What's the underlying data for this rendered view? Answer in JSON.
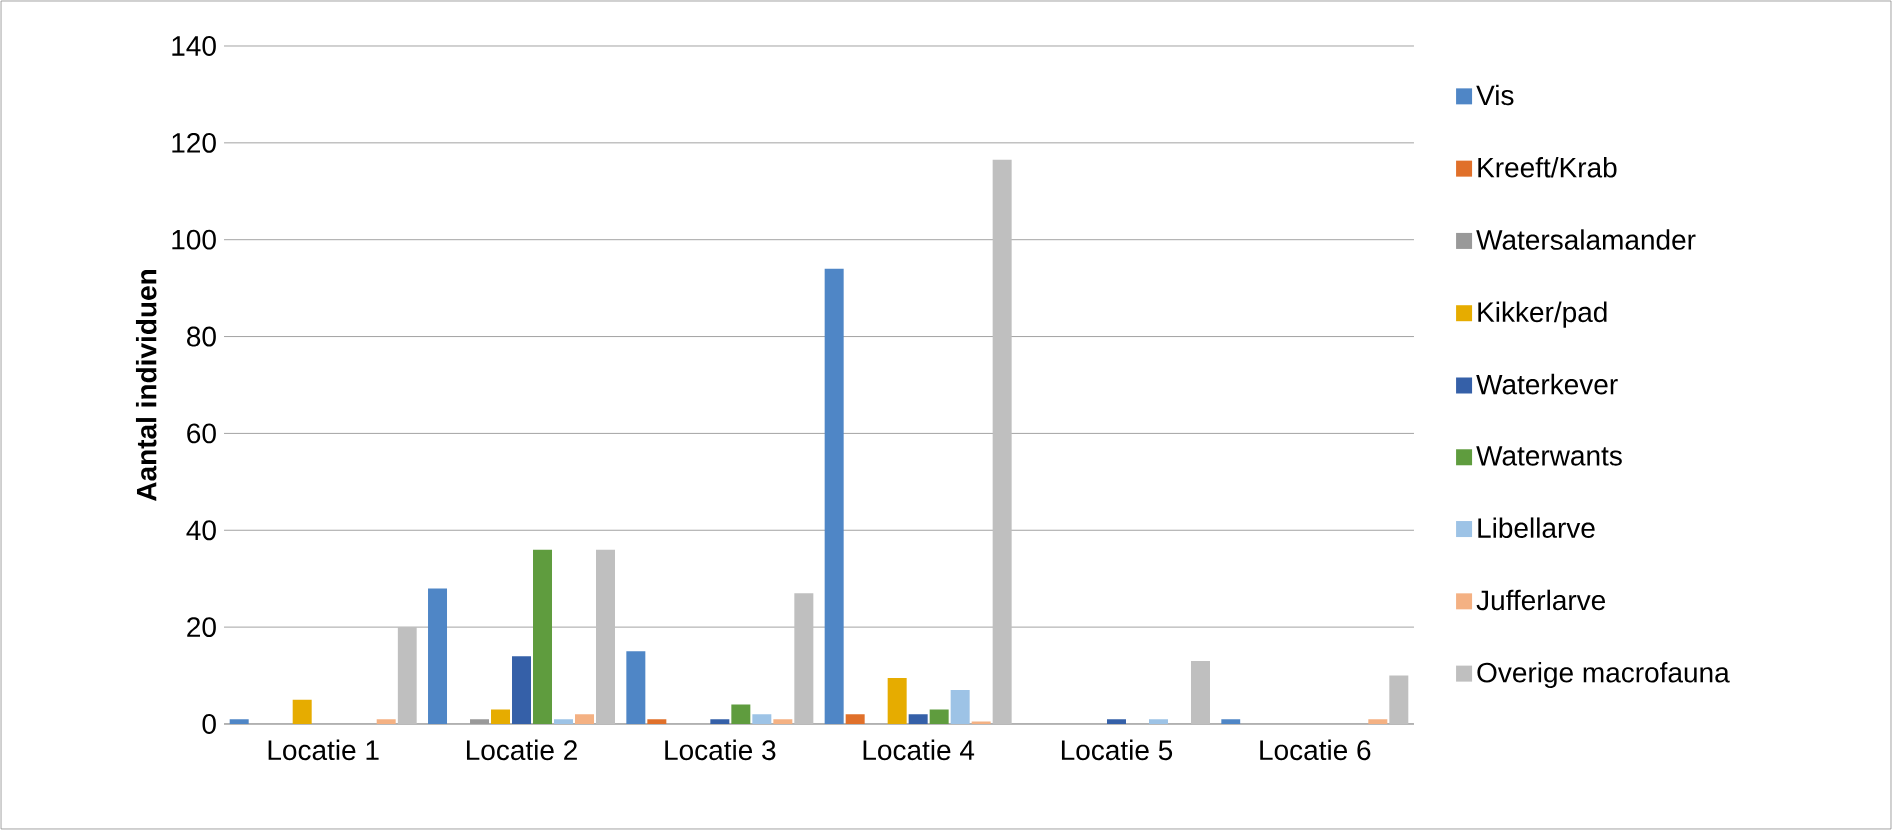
{
  "chart_data": {
    "type": "bar",
    "ylabel": "Aantal individuen",
    "categories": [
      "Locatie 1",
      "Locatie 2",
      "Locatie 3",
      "Locatie 4",
      "Locatie 5",
      "Locatie 6"
    ],
    "series": [
      {
        "name": "Vis",
        "color": "#4f86c6",
        "values": [
          1,
          28,
          15,
          94,
          0,
          1
        ]
      },
      {
        "name": "Kreeft/Krab",
        "color": "#e0702a",
        "values": [
          0,
          0,
          1,
          2,
          0,
          0
        ]
      },
      {
        "name": "Watersalamander",
        "color": "#999999",
        "values": [
          0,
          1,
          0,
          0,
          0,
          0
        ]
      },
      {
        "name": "Kikker/pad",
        "color": "#e6ac00",
        "values": [
          5,
          3,
          0,
          9.5,
          0,
          0
        ]
      },
      {
        "name": "Waterkever",
        "color": "#3560a8",
        "values": [
          0,
          14,
          1,
          2,
          1,
          0
        ]
      },
      {
        "name": "Waterwants",
        "color": "#5f9c3e",
        "values": [
          0,
          36,
          4,
          3,
          0,
          0
        ]
      },
      {
        "name": "Libellarve",
        "color": "#9dc3e6",
        "values": [
          0,
          1,
          2,
          7,
          1,
          0
        ]
      },
      {
        "name": "Jufferlarve",
        "color": "#f4b183",
        "values": [
          1,
          2,
          1,
          0.5,
          0,
          1
        ]
      },
      {
        "name": "Overige macrofauna",
        "color": "#bfbfbf",
        "values": [
          20,
          36,
          27,
          116.5,
          13,
          10
        ]
      }
    ],
    "ylim": [
      0,
      140
    ],
    "yticks": [
      0,
      20,
      40,
      60,
      80,
      100,
      120,
      140
    ],
    "grid": "y",
    "legend": "right"
  }
}
